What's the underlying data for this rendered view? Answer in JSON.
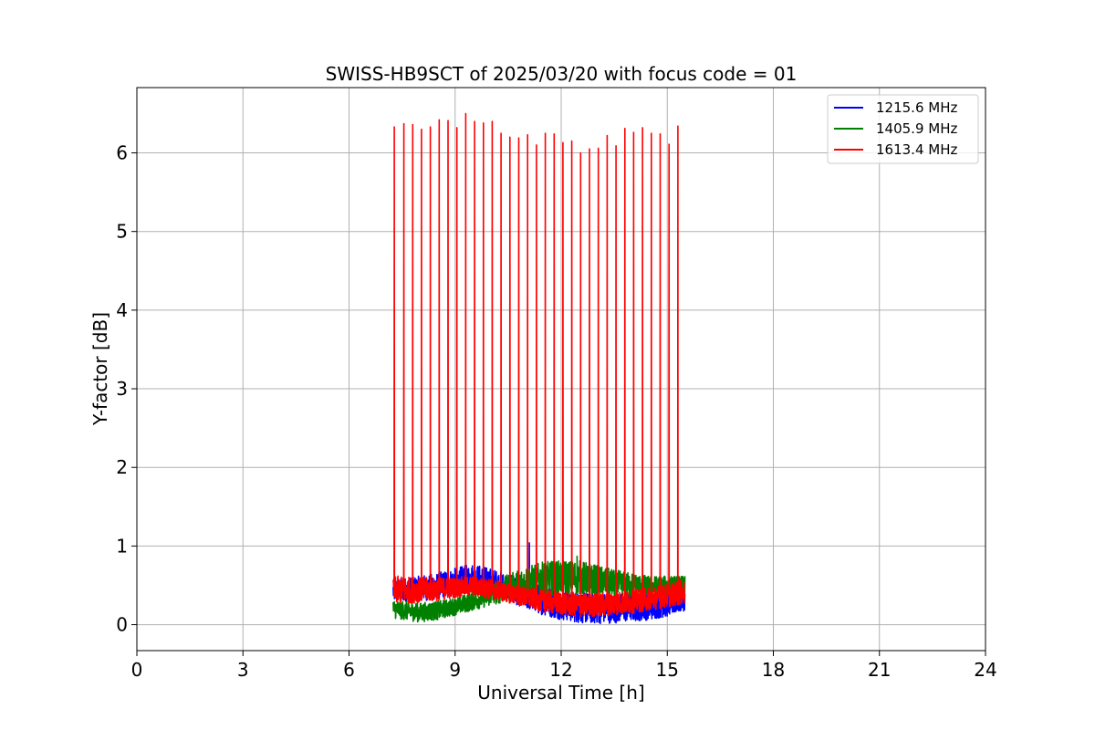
{
  "chart_data": {
    "type": "line",
    "title": "SWISS-HB9SCT of 2025/03/20 with focus code = 01",
    "xlabel": "Universal Time [h]",
    "ylabel": "Y-factor [dB]",
    "xlim": [
      0,
      24
    ],
    "ylim": [
      -0.33,
      6.83
    ],
    "xticks": [
      0,
      3,
      6,
      9,
      12,
      15,
      18,
      21,
      24
    ],
    "yticks": [
      0,
      1,
      2,
      3,
      4,
      5,
      6
    ],
    "grid": true,
    "legend_position": "top-right",
    "time_range": [
      7.25,
      15.5
    ],
    "series": [
      {
        "name": "1215.6 MHz",
        "color": "#0000ff",
        "envelope": {
          "x": [
            7.25,
            8.0,
            8.5,
            9.0,
            9.5,
            10.0,
            10.5,
            11.0,
            11.5,
            12.0,
            12.5,
            13.0,
            13.5,
            14.0,
            14.5,
            15.0,
            15.5
          ],
          "low": [
            0.28,
            0.3,
            0.32,
            0.36,
            0.4,
            0.36,
            0.3,
            0.2,
            0.12,
            0.06,
            0.02,
            0.01,
            0.02,
            0.04,
            0.06,
            0.1,
            0.18
          ],
          "high": [
            0.58,
            0.62,
            0.66,
            0.72,
            0.78,
            0.72,
            0.64,
            0.56,
            0.5,
            0.44,
            0.42,
            0.4,
            0.4,
            0.4,
            0.4,
            0.42,
            0.48
          ]
        },
        "spikes": [
          {
            "x": 11.1,
            "y": 1.04
          }
        ]
      },
      {
        "name": "1405.9 MHz",
        "color": "#008000",
        "envelope": {
          "x": [
            7.25,
            8.0,
            8.5,
            9.0,
            9.5,
            10.0,
            10.5,
            11.0,
            11.5,
            12.0,
            12.5,
            13.0,
            13.5,
            14.0,
            14.5,
            15.0,
            15.5
          ],
          "low": [
            0.08,
            0.03,
            0.06,
            0.12,
            0.18,
            0.24,
            0.3,
            0.34,
            0.36,
            0.38,
            0.38,
            0.36,
            0.34,
            0.34,
            0.34,
            0.34,
            0.36
          ],
          "high": [
            0.32,
            0.28,
            0.3,
            0.34,
            0.42,
            0.52,
            0.64,
            0.74,
            0.8,
            0.82,
            0.82,
            0.76,
            0.7,
            0.66,
            0.62,
            0.62,
            0.62
          ]
        },
        "spikes": [
          {
            "x": 12.45,
            "y": 0.87
          }
        ]
      },
      {
        "name": "1613.4 MHz",
        "color": "#ff0000",
        "envelope": {
          "x": [
            7.25,
            8.0,
            8.5,
            9.0,
            9.5,
            10.0,
            10.5,
            11.0,
            11.5,
            12.0,
            12.5,
            13.0,
            13.5,
            14.0,
            14.5,
            15.0,
            15.5
          ],
          "low": [
            0.26,
            0.28,
            0.3,
            0.34,
            0.36,
            0.32,
            0.28,
            0.22,
            0.16,
            0.12,
            0.1,
            0.1,
            0.12,
            0.14,
            0.18,
            0.22,
            0.26
          ],
          "high": [
            0.62,
            0.6,
            0.6,
            0.6,
            0.62,
            0.58,
            0.52,
            0.48,
            0.44,
            0.42,
            0.4,
            0.4,
            0.42,
            0.44,
            0.48,
            0.52,
            0.58
          ]
        },
        "spikes": [
          {
            "x": 7.28,
            "y": 6.33
          },
          {
            "x": 7.55,
            "y": 6.37
          },
          {
            "x": 7.8,
            "y": 6.36
          },
          {
            "x": 8.05,
            "y": 6.3
          },
          {
            "x": 8.3,
            "y": 6.33
          },
          {
            "x": 8.55,
            "y": 6.42
          },
          {
            "x": 8.8,
            "y": 6.41
          },
          {
            "x": 9.05,
            "y": 6.32
          },
          {
            "x": 9.3,
            "y": 6.5
          },
          {
            "x": 9.55,
            "y": 6.4
          },
          {
            "x": 9.8,
            "y": 6.38
          },
          {
            "x": 10.05,
            "y": 6.4
          },
          {
            "x": 10.3,
            "y": 6.25
          },
          {
            "x": 10.55,
            "y": 6.2
          },
          {
            "x": 10.8,
            "y": 6.19
          },
          {
            "x": 11.05,
            "y": 6.23
          },
          {
            "x": 11.3,
            "y": 6.1
          },
          {
            "x": 11.55,
            "y": 6.25
          },
          {
            "x": 11.8,
            "y": 6.24
          },
          {
            "x": 12.05,
            "y": 6.13
          },
          {
            "x": 12.3,
            "y": 6.15
          },
          {
            "x": 12.55,
            "y": 6.0
          },
          {
            "x": 12.8,
            "y": 6.05
          },
          {
            "x": 13.05,
            "y": 6.06
          },
          {
            "x": 13.3,
            "y": 6.22
          },
          {
            "x": 13.55,
            "y": 6.09
          },
          {
            "x": 13.8,
            "y": 6.31
          },
          {
            "x": 14.05,
            "y": 6.26
          },
          {
            "x": 14.3,
            "y": 6.32
          },
          {
            "x": 14.55,
            "y": 6.25
          },
          {
            "x": 14.8,
            "y": 6.24
          },
          {
            "x": 15.05,
            "y": 6.11
          },
          {
            "x": 15.3,
            "y": 6.34
          }
        ]
      }
    ]
  }
}
